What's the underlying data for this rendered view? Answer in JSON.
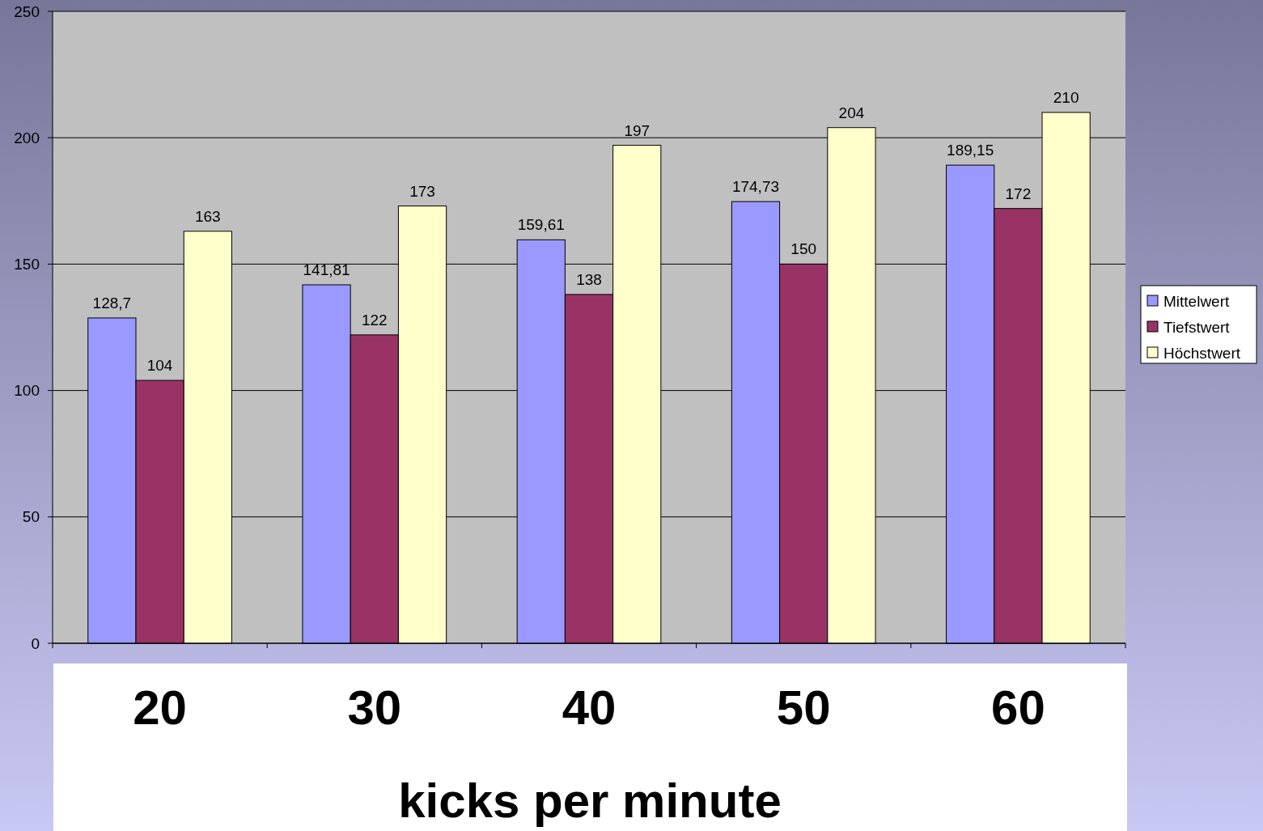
{
  "chart_data": {
    "type": "bar",
    "xlabel": "kicks per minute",
    "categories": [
      "20",
      "30",
      "40",
      "50",
      "60"
    ],
    "series": [
      {
        "name": "Mittelwert",
        "color": "#9999ff",
        "values": [
          128.7,
          141.81,
          159.61,
          174.73,
          189.15
        ],
        "value_labels": [
          "128,7",
          "141,81",
          "159,61",
          "174,73",
          "189,15"
        ]
      },
      {
        "name": "Tiefstwert",
        "color": "#993366",
        "values": [
          104,
          122,
          138,
          150,
          172
        ],
        "value_labels": [
          "104",
          "122",
          "138",
          "150",
          "172"
        ]
      },
      {
        "name": "Höchstwert",
        "color": "#ffffcc",
        "values": [
          163,
          173,
          197,
          204,
          210
        ],
        "value_labels": [
          "163",
          "173",
          "197",
          "204",
          "210"
        ]
      }
    ],
    "ylim": [
      0,
      250
    ],
    "yticks": [
      0,
      50,
      100,
      150,
      200,
      250
    ],
    "grid": "y",
    "legend": "right"
  }
}
